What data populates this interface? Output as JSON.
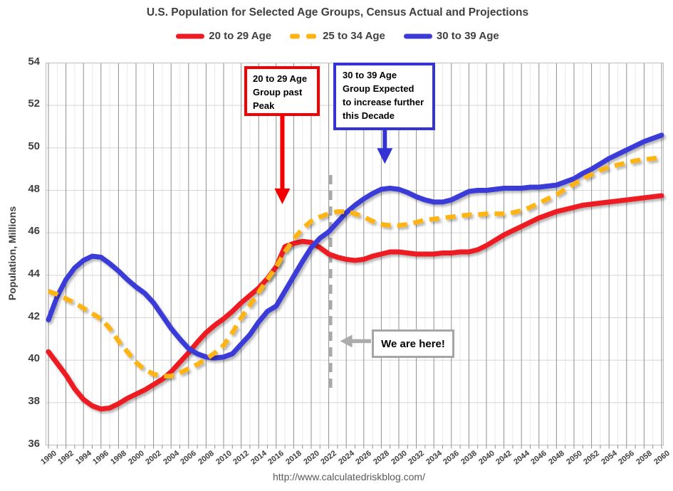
{
  "title": "U.S. Population for Selected Age Groups, Census Actual and Projections",
  "footer": {
    "url": "http://www.calculatedriskblog.com/"
  },
  "legend": {
    "items": [
      {
        "label": "20 to 29 Age",
        "color": "#ec1c24",
        "dash": false
      },
      {
        "label": "25 to 34 Age",
        "color": "#ffb412",
        "dash": true
      },
      {
        "label": "30 to 39 Age",
        "color": "#3b3bd8",
        "dash": false
      }
    ]
  },
  "axes": {
    "y_label": "Population, Millions",
    "y_min": 36,
    "y_max": 54,
    "y_step": 2,
    "x_min": 1990,
    "x_max": 2060,
    "x_label_step": 2
  },
  "colors": {
    "grid_major": "#8f8f8f",
    "grid_minor": "#eaeaea",
    "grid_horizontal": "#d5d5d5",
    "border": "#bdbdbd",
    "marker_gray": "#a9a9a9",
    "arrow_red": "#f50000",
    "arrow_blue": "#3434d4"
  },
  "chart_data": {
    "type": "line",
    "title": "U.S. Population for Selected Age Groups, Census Actual and Projections",
    "xlabel": "",
    "ylabel": "Population, Millions",
    "ylim": [
      36,
      54
    ],
    "grid": true,
    "legend_position": "top",
    "x": [
      1990,
      1991,
      1992,
      1993,
      1994,
      1995,
      1996,
      1997,
      1998,
      1999,
      2000,
      2001,
      2002,
      2003,
      2004,
      2005,
      2006,
      2007,
      2008,
      2009,
      2010,
      2011,
      2012,
      2013,
      2014,
      2015,
      2016,
      2017,
      2018,
      2019,
      2020,
      2021,
      2022,
      2023,
      2024,
      2025,
      2026,
      2027,
      2028,
      2029,
      2030,
      2031,
      2032,
      2033,
      2034,
      2035,
      2036,
      2037,
      2038,
      2039,
      2040,
      2041,
      2042,
      2043,
      2044,
      2045,
      2046,
      2047,
      2048,
      2049,
      2050,
      2051,
      2052,
      2053,
      2054,
      2055,
      2056,
      2057,
      2058,
      2059,
      2060
    ],
    "series": [
      {
        "name": "20 to 29 Age",
        "color": "#ec1c24",
        "style": "solid",
        "values": [
          40.4,
          39.85,
          39.3,
          38.65,
          38.15,
          37.85,
          37.7,
          37.75,
          37.95,
          38.2,
          38.4,
          38.6,
          38.85,
          39.1,
          39.45,
          39.9,
          40.35,
          40.85,
          41.3,
          41.65,
          41.95,
          42.3,
          42.7,
          43.05,
          43.4,
          43.85,
          44.4,
          45.35,
          45.5,
          45.6,
          45.55,
          45.3,
          45.0,
          44.85,
          44.75,
          44.7,
          44.75,
          44.9,
          45.0,
          45.1,
          45.1,
          45.05,
          45.0,
          45.0,
          45.0,
          45.05,
          45.05,
          45.1,
          45.1,
          45.2,
          45.4,
          45.65,
          45.9,
          46.1,
          46.3,
          46.5,
          46.7,
          46.85,
          47.0,
          47.1,
          47.2,
          47.3,
          47.35,
          47.4,
          47.45,
          47.5,
          47.55,
          47.6,
          47.65,
          47.7,
          47.75
        ]
      },
      {
        "name": "25 to 34 Age",
        "color": "#ffb412",
        "style": "dashed",
        "values": [
          43.25,
          43.1,
          42.9,
          42.7,
          42.45,
          42.2,
          41.95,
          41.5,
          40.9,
          40.4,
          39.9,
          39.55,
          39.35,
          39.25,
          39.25,
          39.4,
          39.6,
          39.8,
          40.05,
          40.35,
          40.7,
          41.3,
          42.0,
          42.6,
          43.2,
          43.8,
          44.4,
          45.1,
          45.7,
          46.2,
          46.55,
          46.75,
          46.9,
          47.0,
          47.0,
          46.9,
          46.75,
          46.55,
          46.4,
          46.35,
          46.35,
          46.4,
          46.5,
          46.6,
          46.65,
          46.7,
          46.75,
          46.8,
          46.85,
          46.85,
          46.9,
          46.9,
          46.9,
          46.95,
          47.05,
          47.2,
          47.4,
          47.6,
          47.8,
          48.05,
          48.3,
          48.55,
          48.75,
          48.95,
          49.1,
          49.2,
          49.3,
          49.4,
          49.45,
          49.5,
          49.55
        ]
      },
      {
        "name": "30 to 39 Age",
        "color": "#3b3bd8",
        "style": "solid",
        "values": [
          41.9,
          43.0,
          43.8,
          44.35,
          44.7,
          44.9,
          44.85,
          44.55,
          44.2,
          43.8,
          43.45,
          43.15,
          42.7,
          42.1,
          41.5,
          41.0,
          40.55,
          40.3,
          40.15,
          40.1,
          40.15,
          40.3,
          40.75,
          41.2,
          41.8,
          42.3,
          42.55,
          43.25,
          43.95,
          44.65,
          45.3,
          45.75,
          46.05,
          46.5,
          46.95,
          47.3,
          47.6,
          47.85,
          48.05,
          48.1,
          48.05,
          47.9,
          47.7,
          47.55,
          47.45,
          47.45,
          47.55,
          47.75,
          47.95,
          48.0,
          48.0,
          48.05,
          48.1,
          48.1,
          48.1,
          48.15,
          48.15,
          48.2,
          48.25,
          48.4,
          48.55,
          48.8,
          49.0,
          49.25,
          49.5,
          49.7,
          49.9,
          50.1,
          50.3,
          50.45,
          50.6
        ]
      }
    ],
    "marker_line": {
      "year": 2022.2,
      "from_value": 38.7,
      "to_value": 48.75,
      "color": "#a9a9a9"
    }
  },
  "annotations": {
    "past_peak": {
      "lines": [
        "20 to 29 Age",
        "Group past",
        "Peak"
      ],
      "arrow": {
        "x_year": 2016.7,
        "tip_value": 47.35
      }
    },
    "increase": {
      "lines": [
        "30 to 39 Age",
        "Group Expected",
        "to increase further",
        "this Decade"
      ],
      "arrow": {
        "x_year": 2028.4,
        "tip_value": 49.25
      }
    },
    "we_are_here": {
      "text": "We are here!",
      "arrow": {
        "tip_year": 2023.3,
        "value": 40.9
      }
    }
  }
}
